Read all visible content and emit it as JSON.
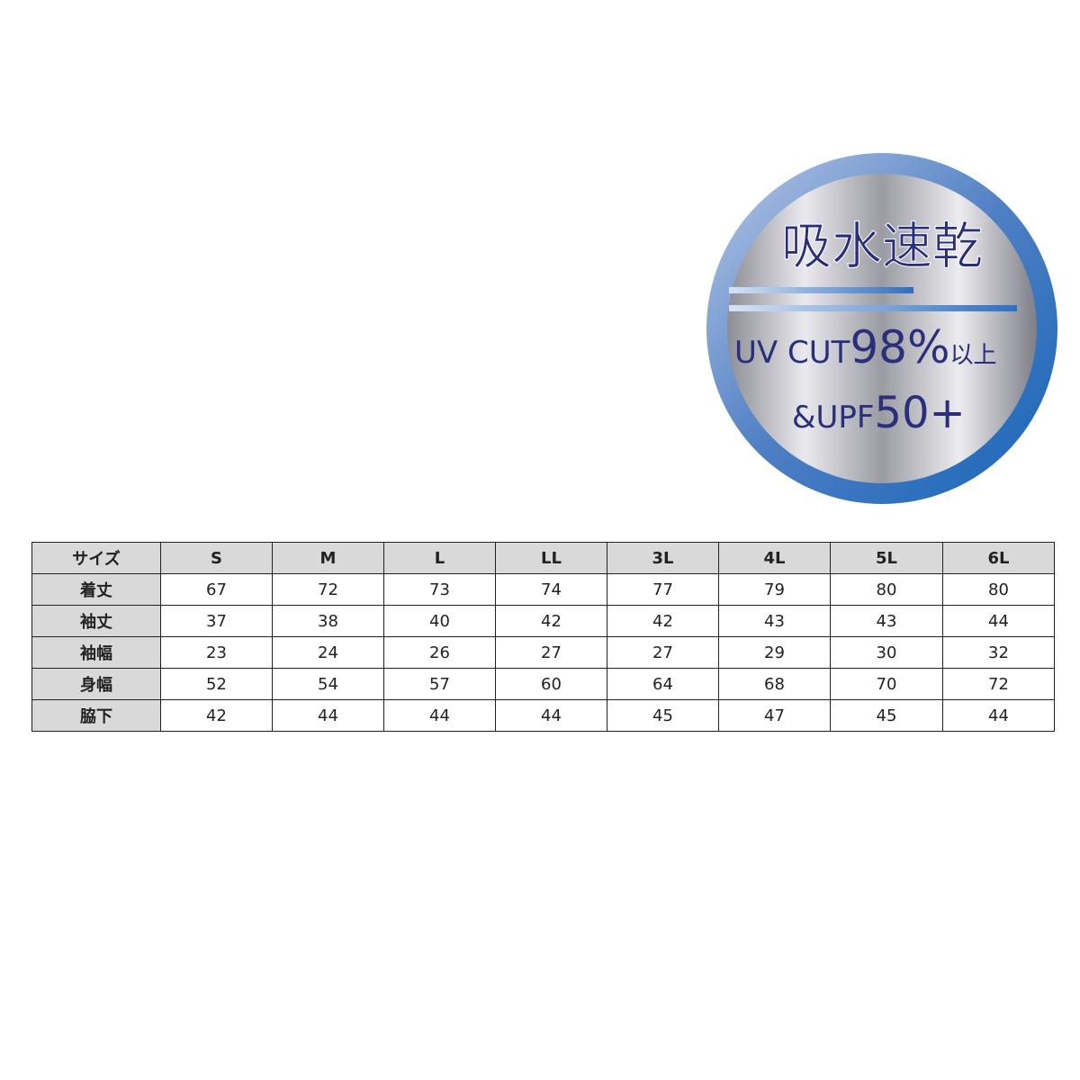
{
  "badge": {
    "title": "吸水速乾",
    "uv_label": "UV CUT",
    "uv_value": "98%",
    "uv_suffix": "以上",
    "upf_label": "&UPF",
    "upf_value": "50+"
  },
  "table": {
    "header": [
      "サイズ",
      "S",
      "M",
      "L",
      "LL",
      "3L",
      "4L",
      "5L",
      "6L"
    ],
    "rows": [
      [
        "着丈",
        67,
        72,
        73,
        74,
        77,
        79,
        80,
        80
      ],
      [
        "袖丈",
        37,
        38,
        40,
        42,
        42,
        43,
        43,
        44
      ],
      [
        "袖幅",
        23,
        24,
        26,
        27,
        27,
        29,
        30,
        32
      ],
      [
        "身幅",
        52,
        54,
        57,
        60,
        64,
        68,
        70,
        72
      ],
      [
        "脇下",
        42,
        44,
        44,
        44,
        45,
        47,
        45,
        44
      ]
    ]
  }
}
